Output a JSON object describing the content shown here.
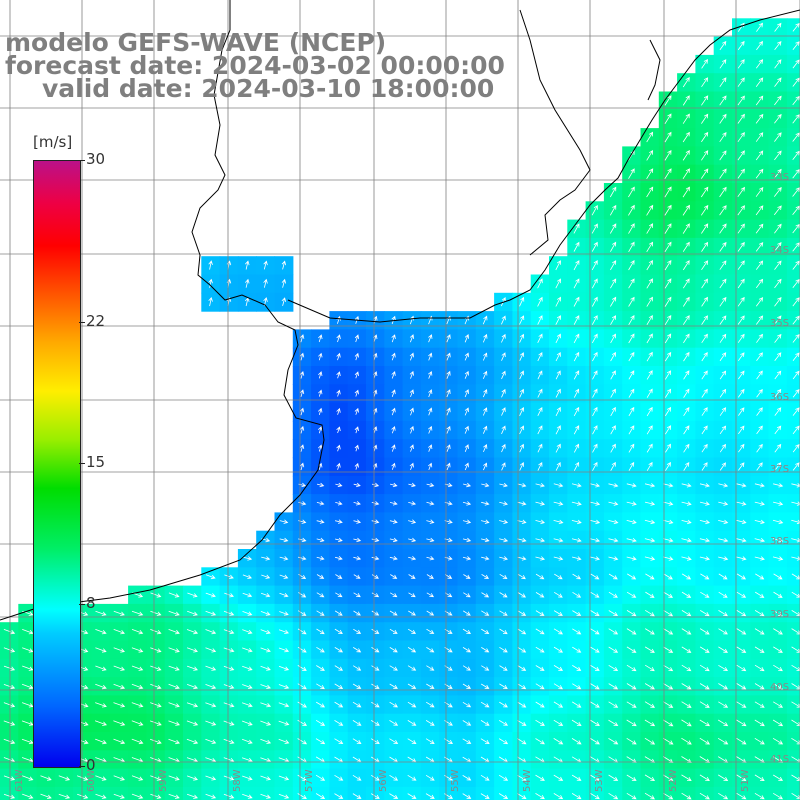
{
  "title": {
    "line1": "modelo GEFS-WAVE (NCEP)",
    "line2": "forecast date: 2024-03-02 00:00:00",
    "line3": "valid date: 2024-03-10 18:00:00"
  },
  "colorbar": {
    "unit": "[m/s]",
    "ticks": [
      {
        "label": "30",
        "value": 30
      },
      {
        "label": "22",
        "value": 22
      },
      {
        "label": "15",
        "value": 15
      },
      {
        "label": "8",
        "value": 8
      },
      {
        "label": "0",
        "value": 0
      }
    ],
    "min": 0,
    "max": 30
  },
  "grid_labels": {
    "longitudes": [
      "61W",
      "60W",
      "59W",
      "58W",
      "57W",
      "56W",
      "55W",
      "54W",
      "53W",
      "52W",
      "51W"
    ],
    "latitudes": [
      "33S",
      "34S",
      "35S",
      "36S",
      "37S",
      "38S",
      "39S",
      "40S",
      "41S"
    ]
  },
  "colors": {
    "land": "#ffffff",
    "coast": "#000000",
    "grid": "#808080",
    "arrows": "#ffffff",
    "title": "#7f7f7f"
  }
}
